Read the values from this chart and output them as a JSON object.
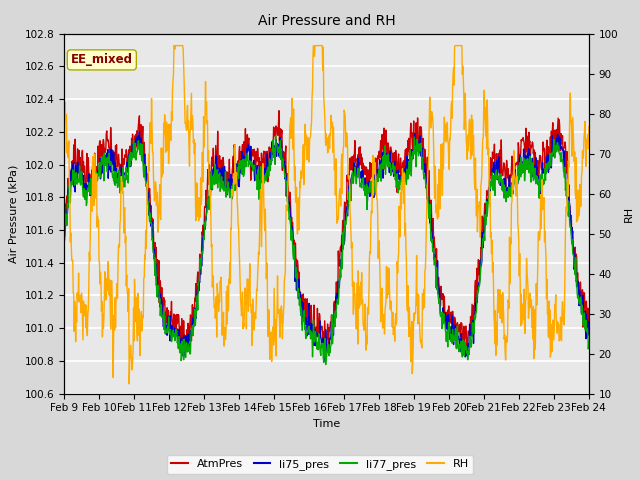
{
  "title": "Air Pressure and RH",
  "xlabel": "Time",
  "ylabel_left": "Air Pressure (kPa)",
  "ylabel_right": "RH",
  "annotation": "EE_mixed",
  "ylim_left": [
    100.6,
    102.8
  ],
  "ylim_right": [
    10,
    100
  ],
  "yticks_left": [
    100.6,
    100.8,
    101.0,
    101.2,
    101.4,
    101.6,
    101.8,
    102.0,
    102.2,
    102.4,
    102.6,
    102.8
  ],
  "yticks_right": [
    10,
    20,
    30,
    40,
    50,
    60,
    70,
    80,
    90,
    100
  ],
  "xtick_labels": [
    "Feb 9",
    "Feb 10",
    "Feb 11",
    "Feb 12",
    "Feb 13",
    "Feb 14",
    "Feb 15",
    "Feb 16",
    "Feb 17",
    "Feb 18",
    "Feb 19",
    "Feb 20",
    "Feb 21",
    "Feb 22",
    "Feb 23",
    "Feb 24"
  ],
  "colors": {
    "AtmPres": "#cc0000",
    "li75_pres": "#0000cc",
    "li77_pres": "#00aa00",
    "RH": "#ffaa00"
  },
  "bg_color": "#d8d8d8",
  "plot_bg": "#e8e8e8",
  "annotation_bg": "#ffffcc",
  "annotation_border": "#aaaa00",
  "annotation_text_color": "#880000",
  "linewidth": 1.0,
  "title_fontsize": 10,
  "label_fontsize": 8,
  "tick_fontsize": 7.5,
  "legend_fontsize": 8
}
